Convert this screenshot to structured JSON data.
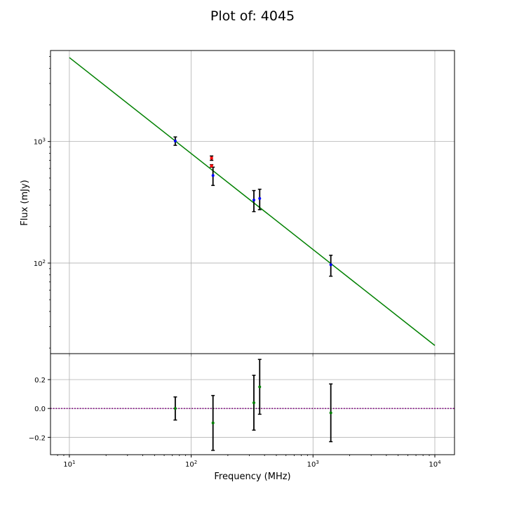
{
  "chart_data": {
    "type": "scatter",
    "title": "Plot of: 4045",
    "xlabel": "Frequency (MHz)",
    "ylabel": "Flux (mJy)",
    "xscale": "log",
    "grid": true,
    "x_ticks": [
      {
        "value": 10,
        "label": "10",
        "exp": "1"
      },
      {
        "value": 100,
        "label": "10",
        "exp": "2"
      },
      {
        "value": 1000,
        "label": "10",
        "exp": "3"
      },
      {
        "value": 10000,
        "label": "10",
        "exp": "4"
      }
    ],
    "upper_panel": {
      "yscale": "log",
      "xlim": [
        7,
        14500
      ],
      "ylim": [
        18,
        5600
      ],
      "y_ticks": [
        {
          "value": 100,
          "label": "10",
          "exp": "2"
        },
        {
          "value": 1000,
          "label": "10",
          "exp": "3"
        }
      ],
      "fit_line": {
        "color": "#008000",
        "x": [
          10,
          10000
        ],
        "y": [
          4900,
          21
        ]
      },
      "points": [
        {
          "x": 74,
          "y": 1010,
          "yerr_low": 80,
          "yerr_high": 80,
          "color": "#0000ff"
        },
        {
          "x": 151,
          "y": 525,
          "yerr_low": 90,
          "yerr_high": 90,
          "color": "#0000ff"
        },
        {
          "x": 327,
          "y": 330,
          "yerr_low": 65,
          "yerr_high": 65,
          "color": "#0000ff"
        },
        {
          "x": 365,
          "y": 340,
          "yerr_low": 65,
          "yerr_high": 65,
          "color": "#0000ff"
        },
        {
          "x": 1400,
          "y": 97,
          "yerr_low": 19,
          "yerr_high": 19,
          "color": "#0000ff"
        },
        {
          "x": 147,
          "y": 730,
          "yerr_low": 30,
          "yerr_high": 30,
          "color": "#ff0000"
        },
        {
          "x": 147,
          "y": 630,
          "yerr_low": 15,
          "yerr_high": 15,
          "color": "#ff0000"
        }
      ]
    },
    "lower_panel": {
      "yscale": "linear",
      "xlim": [
        7,
        14500
      ],
      "ylim": [
        -0.32,
        0.38
      ],
      "y_ticks": [
        {
          "value": -0.2,
          "label": "−0.2"
        },
        {
          "value": 0.0,
          "label": "0.0"
        },
        {
          "value": 0.2,
          "label": "0.2"
        }
      ],
      "zero_line": {
        "value": 0.0,
        "color": "#800080"
      },
      "points": [
        {
          "x": 74,
          "y": 0.0,
          "yerr_low": 0.08,
          "yerr_high": 0.08,
          "color": "#008000"
        },
        {
          "x": 151,
          "y": -0.1,
          "yerr_low": 0.19,
          "yerr_high": 0.19,
          "color": "#008000"
        },
        {
          "x": 327,
          "y": 0.04,
          "yerr_low": 0.19,
          "yerr_high": 0.19,
          "color": "#008000"
        },
        {
          "x": 365,
          "y": 0.15,
          "yerr_low": 0.19,
          "yerr_high": 0.19,
          "color": "#008000"
        },
        {
          "x": 1400,
          "y": -0.03,
          "yerr_low": 0.2,
          "yerr_high": 0.2,
          "color": "#008000"
        }
      ]
    }
  }
}
